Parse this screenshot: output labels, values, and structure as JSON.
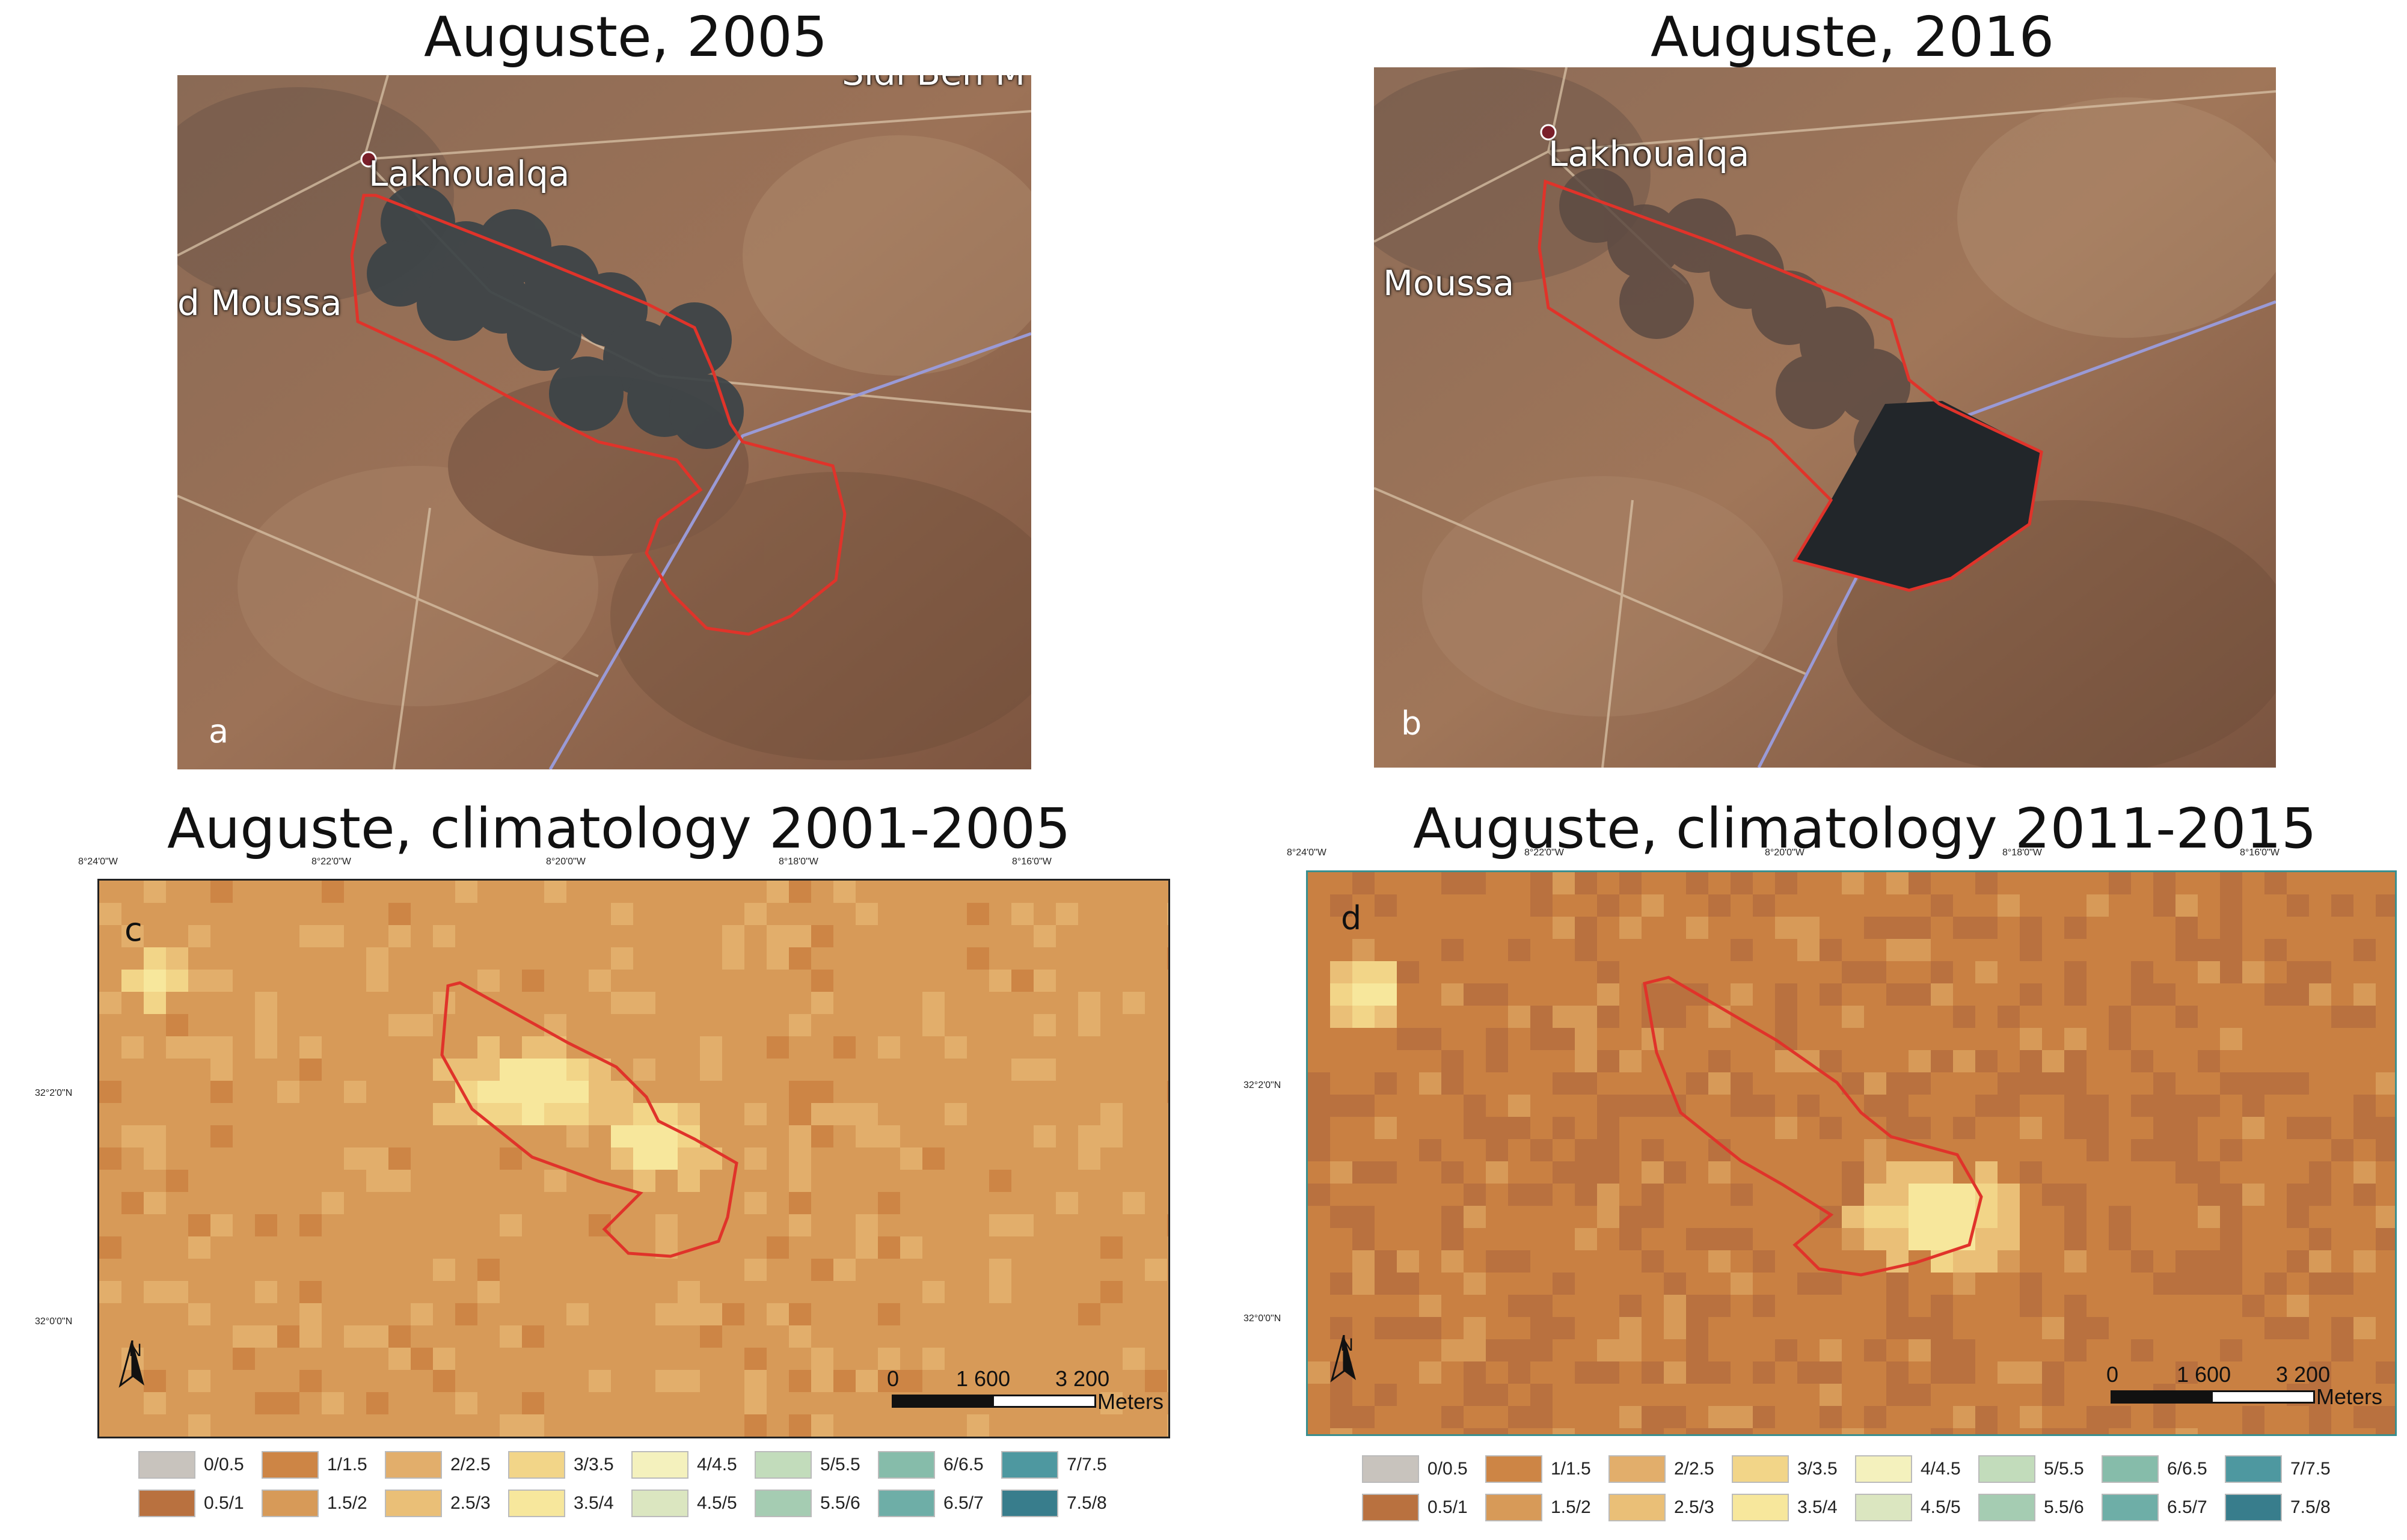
{
  "panel_a": {
    "title": "Auguste, 2005",
    "letter": "a",
    "places": [
      "Lakhoualqa",
      "d Moussa",
      "Sidi Ben M"
    ]
  },
  "panel_b": {
    "title": "Auguste, 2016",
    "letter": "b",
    "places": [
      "Lakhoualqa",
      "Moussa"
    ]
  },
  "panel_c": {
    "title": "Auguste, climatology 2001-2005",
    "letter": "c",
    "lon_ticks": [
      "8°24'0\"W",
      "8°22'0\"W",
      "8°20'0\"W",
      "8°18'0\"W",
      "8°16'0\"W"
    ],
    "lat_ticks": [
      "32°2'0\"N",
      "32°0'0\"N"
    ]
  },
  "panel_d": {
    "title": "Auguste, climatology 2011-2015",
    "letter": "d",
    "lon_ticks": [
      "8°24'0\"W",
      "8°22'0\"W",
      "8°20'0\"W",
      "8°18'0\"W",
      "8°16'0\"W"
    ],
    "lat_ticks": [
      "32°2'0\"N",
      "32°0'0\"N"
    ]
  },
  "scale_bar": {
    "labels": [
      "0",
      "1 600",
      "3 200"
    ],
    "unit": "Meters"
  },
  "north_label": "N",
  "legend": {
    "classes": [
      {
        "label": "0/0.5",
        "color": "#c8c3bd"
      },
      {
        "label": "0.5/1",
        "color": "#b9713f"
      },
      {
        "label": "1/1.5",
        "color": "#cd8545"
      },
      {
        "label": "1.5/2",
        "color": "#d79a58"
      },
      {
        "label": "2/2.5",
        "color": "#e2ae6b"
      },
      {
        "label": "2.5/3",
        "color": "#eabf77"
      },
      {
        "label": "3/3.5",
        "color": "#f2d588"
      },
      {
        "label": "3.5/4",
        "color": "#f7e79c"
      },
      {
        "label": "4/4.5",
        "color": "#f4f1bd"
      },
      {
        "label": "4.5/5",
        "color": "#dbe6c0"
      },
      {
        "label": "5/5.5",
        "color": "#c2dcbb"
      },
      {
        "label": "5.5/6",
        "color": "#a5ccb2"
      },
      {
        "label": "6/6.5",
        "color": "#86bcaa"
      },
      {
        "label": "6.5/7",
        "color": "#6eaea7"
      },
      {
        "label": "7/7.5",
        "color": "#4e98a0"
      },
      {
        "label": "7.5/8",
        "color": "#387d8c"
      }
    ]
  }
}
